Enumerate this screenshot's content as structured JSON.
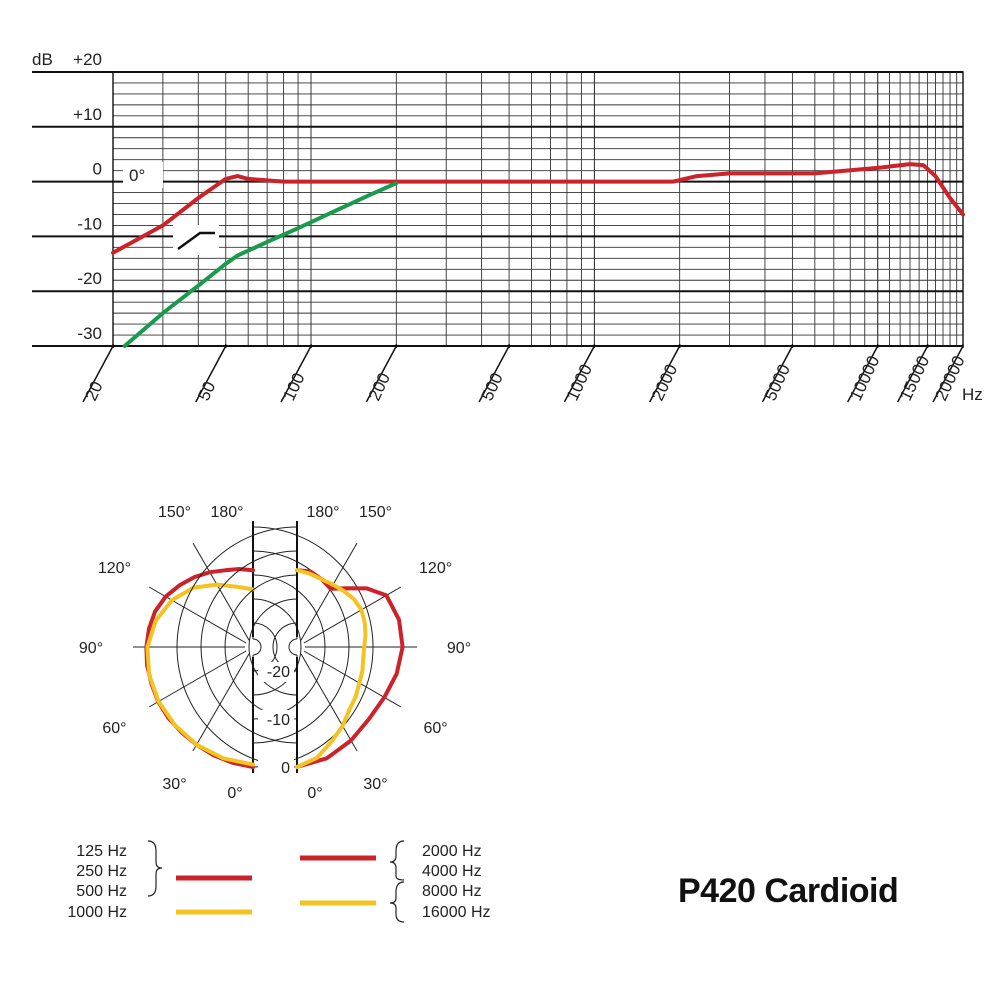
{
  "colors": {
    "red": "#cc2229",
    "green": "#1a9a4c",
    "yellow": "#f3c321",
    "grid": "#222222"
  },
  "title": "P420 Cardioid",
  "chart_data": [
    {
      "type": "line",
      "xscale": "log",
      "xlim": [
        20,
        20000
      ],
      "ylim": [
        -30,
        20
      ],
      "ylabel": "dB",
      "xunit": "Hz",
      "y_ticks": [
        "+20",
        "+10",
        "0",
        "-10",
        "-20",
        "-30"
      ],
      "x_ticks": [
        "20",
        "50",
        "100",
        "200",
        "500",
        "1000",
        "2000",
        "5000",
        "10000",
        "15000",
        "20000"
      ],
      "annotations": [
        "0°"
      ],
      "series": [
        {
          "color": "red",
          "x": [
            20,
            30,
            40,
            50,
            55,
            60,
            80,
            100,
            200,
            500,
            1000,
            1900,
            2300,
            3000,
            5000,
            6000,
            10000,
            13000,
            14500,
            16000,
            18000,
            20000
          ],
          "y": [
            -13,
            -8,
            -3,
            0.5,
            1,
            0.5,
            0,
            0,
            0,
            0,
            0,
            0,
            1,
            1.5,
            1.5,
            1.5,
            2.5,
            3.2,
            3,
            1,
            -3,
            -6
          ]
        },
        {
          "color": "green",
          "x": [
            22,
            30,
            40,
            50,
            55,
            70,
            90,
            120,
            160,
            200
          ],
          "y": [
            -30,
            -24,
            -19,
            -15,
            -13.5,
            -11,
            -8.5,
            -5.5,
            -2.5,
            -0.3
          ]
        }
      ]
    },
    {
      "type": "polar",
      "angle_labels": [
        "0°",
        "30°",
        "60°",
        "90°",
        "120°",
        "150°",
        "180°"
      ],
      "ring_labels": [
        "0",
        "-10",
        "-20"
      ],
      "rlim": [
        -25,
        0
      ],
      "left_half": [
        {
          "color": "red",
          "angles": [
            0,
            10,
            20,
            30,
            40,
            50,
            60,
            70,
            80,
            90,
            100,
            110,
            120,
            130,
            140,
            150,
            160,
            170,
            180
          ],
          "values": [
            0,
            -0.5,
            -1,
            -1.5,
            -1.8,
            -2,
            -2.2,
            -2.5,
            -2.6,
            -2.8,
            -3,
            -3.3,
            -4,
            -5,
            -6,
            -7,
            -8,
            -8.5,
            -9
          ]
        },
        {
          "color": "yellow",
          "angles": [
            0,
            15,
            30,
            45,
            60,
            75,
            90,
            105,
            120,
            135,
            150,
            165,
            180
          ],
          "values": [
            -0.5,
            -1,
            -1.5,
            -2,
            -2.3,
            -2.6,
            -3,
            -4,
            -5.5,
            -7.5,
            -10,
            -12,
            -13
          ]
        }
      ],
      "right_half": [
        {
          "color": "red",
          "angles": [
            0,
            15,
            30,
            45,
            60,
            75,
            90,
            105,
            120,
            130,
            140,
            150,
            160,
            170,
            180
          ],
          "values": [
            0,
            -1,
            -2.5,
            -3.8,
            -4,
            -3.5,
            -3,
            -3,
            -3.5,
            -6,
            -9,
            -11,
            -10,
            -9,
            -9
          ]
        },
        {
          "color": "yellow",
          "angles": [
            0,
            10,
            20,
            30,
            40,
            50,
            60,
            70,
            80,
            90,
            100,
            110,
            120,
            130,
            140,
            150,
            160,
            170,
            180
          ],
          "values": [
            0,
            -1.5,
            -4,
            -6,
            -8,
            -9,
            -10,
            -10.5,
            -11,
            -11,
            -10.5,
            -10,
            -9.5,
            -9.5,
            -9.8,
            -10,
            -10,
            -9.5,
            -9
          ]
        }
      ]
    }
  ],
  "legend": {
    "left": {
      "labels": [
        "125 Hz",
        "250 Hz",
        "500 Hz",
        "1000 Hz"
      ],
      "swatches": [
        "red",
        "yellow"
      ]
    },
    "right": {
      "labels": [
        "2000 Hz",
        "4000 Hz",
        "8000 Hz",
        "16000 Hz"
      ],
      "swatches": [
        "red",
        "yellow"
      ]
    }
  }
}
